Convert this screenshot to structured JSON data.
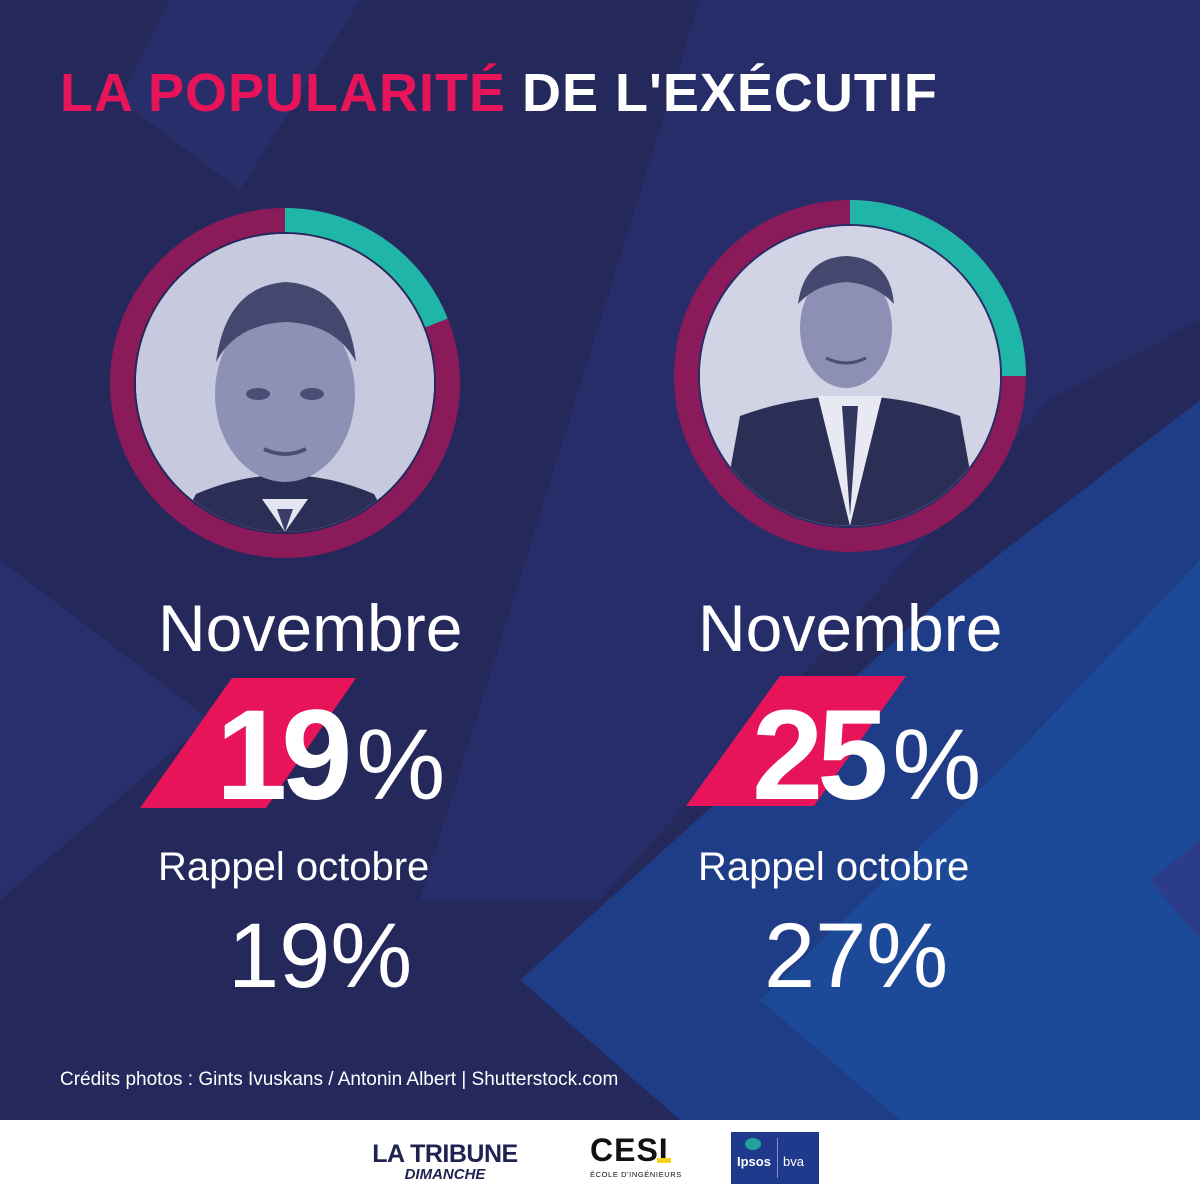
{
  "title": {
    "accent": "LA POPULARITÉ",
    "rest": "DE L'EXÉCUTIF"
  },
  "colors": {
    "background": "#24285a",
    "accent": "#e8145a",
    "ring_track": "#8a1a5a",
    "ring_value": "#1fb5a8",
    "text": "#ffffff"
  },
  "chart_data": [
    {
      "type": "pie",
      "subject_photo_icon": "portrait-left-icon",
      "current_label": "Novembre",
      "current_value": 19,
      "current_text": "19",
      "percent_sign": "%",
      "previous_label": "Rappel octobre",
      "previous_value": 19,
      "previous_text": "19%"
    },
    {
      "type": "pie",
      "subject_photo_icon": "portrait-right-icon",
      "current_label": "Novembre",
      "current_value": 25,
      "current_text": "25",
      "percent_sign": "%",
      "previous_label": "Rappel octobre",
      "previous_value": 27,
      "previous_text": "27%"
    }
  ],
  "credits": "Crédits photos : Gints Ivuskans / Antonin Albert | Shutterstock.com",
  "footer": {
    "tribune_line1": "LA TRIBUNE",
    "tribune_line2": "DIMANCHE",
    "cesi_line1": "CESI",
    "cesi_line2": "ÉCOLE D'INGÉNIEURS",
    "ipsos": "Ipsos",
    "bva": "bva"
  }
}
